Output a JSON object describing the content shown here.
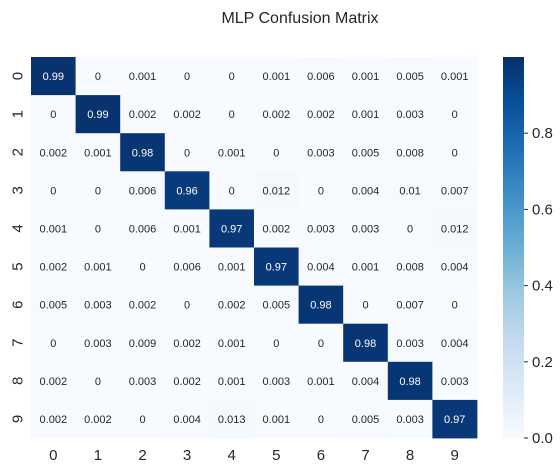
{
  "chart_data": {
    "type": "heatmap",
    "title": "MLP Confusion Matrix",
    "xlabel": "",
    "ylabel": "",
    "x_tick_labels": [
      "0",
      "1",
      "2",
      "3",
      "4",
      "5",
      "6",
      "7",
      "8",
      "9"
    ],
    "y_tick_labels": [
      "0",
      "1",
      "2",
      "3",
      "4",
      "5",
      "6",
      "7",
      "8",
      "9"
    ],
    "values": [
      [
        "0.99",
        "0",
        "0.001",
        "0",
        "0",
        "0.001",
        "0.006",
        "0.001",
        "0.005",
        "0.001"
      ],
      [
        "0",
        "0.99",
        "0.002",
        "0.002",
        "0",
        "0.002",
        "0.002",
        "0.001",
        "0.003",
        "0"
      ],
      [
        "0.002",
        "0.001",
        "0.98",
        "0",
        "0.001",
        "0",
        "0.003",
        "0.005",
        "0.008",
        "0"
      ],
      [
        "0",
        "0",
        "0.006",
        "0.96",
        "0",
        "0.012",
        "0",
        "0.004",
        "0.01",
        "0.007"
      ],
      [
        "0.001",
        "0",
        "0.006",
        "0.001",
        "0.97",
        "0.002",
        "0.003",
        "0.003",
        "0",
        "0.012"
      ],
      [
        "0.002",
        "0.001",
        "0",
        "0.006",
        "0.001",
        "0.97",
        "0.004",
        "0.001",
        "0.008",
        "0.004"
      ],
      [
        "0.005",
        "0.003",
        "0.002",
        "0",
        "0.002",
        "0.005",
        "0.98",
        "0",
        "0.007",
        "0"
      ],
      [
        "0",
        "0.003",
        "0.009",
        "0.002",
        "0.001",
        "0",
        "0",
        "0.98",
        "0.003",
        "0.004"
      ],
      [
        "0.002",
        "0",
        "0.003",
        "0.002",
        "0.001",
        "0.003",
        "0.001",
        "0.004",
        "0.98",
        "0.003"
      ],
      [
        "0.002",
        "0.002",
        "0",
        "0.004",
        "0.013",
        "0.001",
        "0",
        "0.005",
        "0.003",
        "0.97"
      ]
    ],
    "colorbar": {
      "range": [
        0,
        1
      ],
      "ticks": [
        "0.0",
        "0.2",
        "0.4",
        "0.6",
        "0.8"
      ],
      "colormap": "Blues",
      "low_color": "#f7fbff",
      "high_color": "#08306b"
    },
    "grid": false,
    "legend": "none"
  }
}
